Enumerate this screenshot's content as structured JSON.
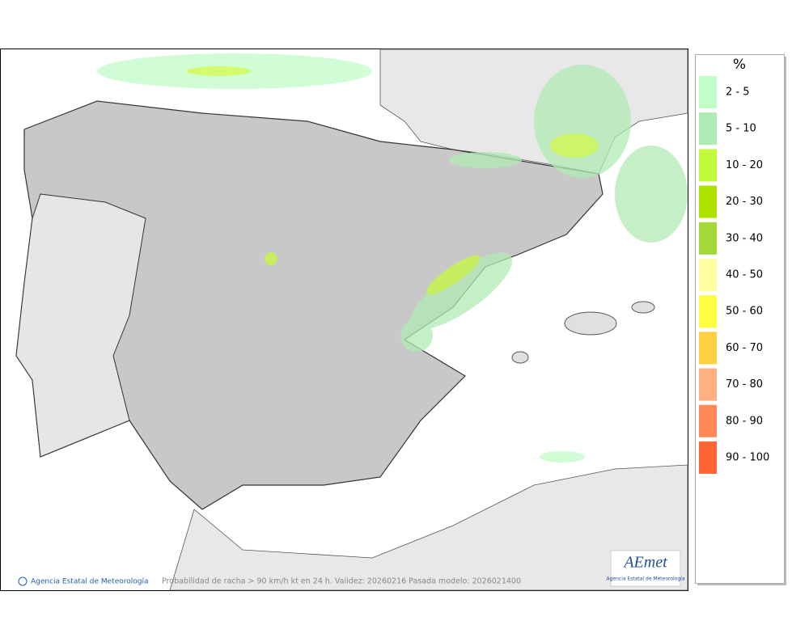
{
  "legend": {
    "title": "%",
    "items": [
      {
        "label": "2 - 5",
        "color": "#c2fcc8"
      },
      {
        "label": "5 - 10",
        "color": "#b0eab4"
      },
      {
        "label": "10 - 20",
        "color": "#c4fa3c"
      },
      {
        "label": "20 - 30",
        "color": "#aee000"
      },
      {
        "label": "30 - 40",
        "color": "#a2d838"
      },
      {
        "label": "40 - 50",
        "color": "#fefea0"
      },
      {
        "label": "50 - 60",
        "color": "#fefe40"
      },
      {
        "label": "60 - 70",
        "color": "#ffd040"
      },
      {
        "label": "70 - 80",
        "color": "#ffb080"
      },
      {
        "label": "80 - 90",
        "color": "#ff8a58"
      },
      {
        "label": "90 - 100",
        "color": "#ff6433"
      }
    ]
  },
  "footer": {
    "credit": "Agencia Estatal de Meteorología",
    "caption": "Probabilidad de racha > 90 km/h kt en 24 h. Validez: 20260216 Pasada modelo: 2026021400"
  },
  "logo": {
    "name": "AEmet",
    "subtitle": "Agencia Estatal de Meteorología"
  }
}
